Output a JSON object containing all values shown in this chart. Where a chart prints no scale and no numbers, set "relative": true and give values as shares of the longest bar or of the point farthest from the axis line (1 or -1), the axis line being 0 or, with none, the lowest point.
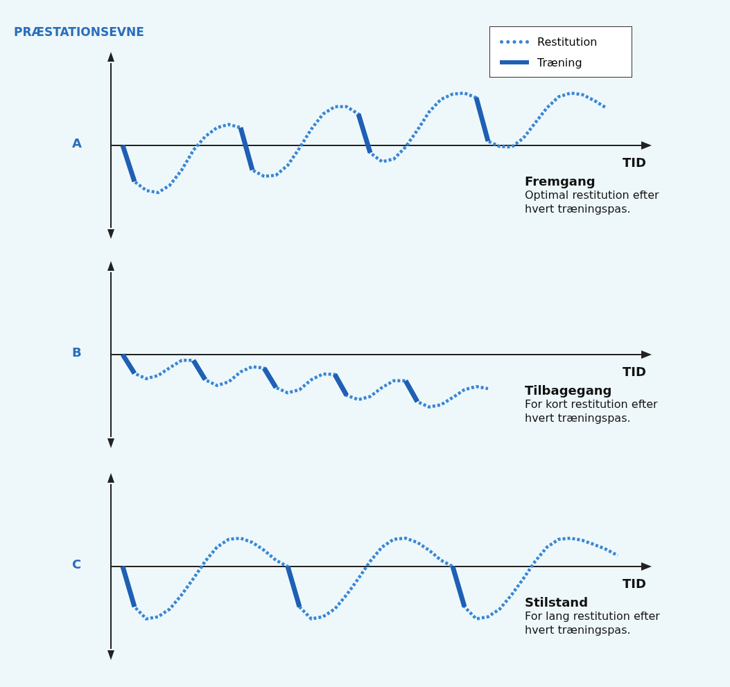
{
  "chart_data": [
    {
      "type": "line",
      "title": "A",
      "ylabel": "PRÆSTATIONSEVNE",
      "xlabel": "TID",
      "relative": true,
      "legend": "top right",
      "line_style": "dotted",
      "annotations": [
        "Fremgang",
        "Optimal restitution efter hvert træningspas."
      ],
      "categories": [
        null,
        null,
        null,
        null,
        null,
        null,
        null,
        null,
        null,
        null,
        null,
        null,
        null,
        null,
        null,
        null,
        null,
        null,
        null,
        null,
        null,
        null,
        null,
        null,
        null,
        null,
        null,
        null,
        null,
        null,
        null,
        null,
        null,
        null,
        null,
        null,
        null,
        null,
        null,
        null,
        null,
        null,
        null,
        null,
        null,
        null
      ],
      "series": [
        {
          "name": "Restitution",
          "color": "#3a86d4",
          "values": [
            null,
            0,
            -0.69,
            -0.86,
            -0.9,
            -0.76,
            -0.47,
            -0.09,
            0.17,
            0.34,
            0.4,
            0.34,
            -0.47,
            -0.59,
            -0.57,
            -0.38,
            -0.05,
            0.31,
            0.6,
            0.74,
            0.74,
            0.6,
            -0.14,
            -0.31,
            -0.26,
            -0.03,
            0.29,
            0.64,
            0.88,
            0.98,
            1,
            0.91,
            0.08,
            -0.02,
            -0.03,
            0.14,
            0.43,
            0.72,
            0.93,
            1,
            0.97,
            0.86,
            0.72,
            null,
            null,
            null
          ]
        },
        {
          "name": "Træning",
          "color": "#1f5fb4",
          "line_style": "solid",
          "values": [
            null,
            0,
            -0.69,
            null,
            null,
            null,
            null,
            null,
            null,
            null,
            null,
            0.34,
            -0.47,
            null,
            null,
            null,
            null,
            null,
            null,
            null,
            null,
            0.6,
            -0.14,
            null,
            null,
            null,
            null,
            null,
            null,
            null,
            null,
            0.91,
            0.08,
            null,
            null,
            null,
            null,
            null,
            null,
            null,
            null,
            null,
            null,
            null,
            null,
            null
          ]
        }
      ]
    },
    {
      "type": "line",
      "title": "B",
      "xlabel": "TID",
      "relative": true,
      "line_style": "dotted",
      "annotations": [
        "Tilbagegang",
        "For kort restitution efter hvert træningspas."
      ],
      "categories": [
        null,
        null,
        null,
        null,
        null,
        null,
        null,
        null,
        null,
        null,
        null,
        null,
        null,
        null,
        null,
        null,
        null,
        null,
        null,
        null,
        null,
        null,
        null,
        null,
        null,
        null,
        null,
        null,
        null,
        null,
        null,
        null,
        null,
        null,
        null,
        null,
        null,
        null,
        null,
        null,
        null,
        null,
        null,
        null,
        null,
        null
      ],
      "series": [
        {
          "color": "#3a86d4",
          "values": [
            null,
            0,
            -0.36,
            -0.46,
            -0.4,
            -0.25,
            -0.11,
            -0.11,
            -0.48,
            -0.59,
            -0.52,
            -0.33,
            -0.23,
            -0.26,
            -0.63,
            -0.73,
            -0.67,
            -0.48,
            -0.37,
            -0.38,
            -0.78,
            -0.86,
            -0.8,
            -0.63,
            -0.5,
            -0.5,
            -0.9,
            -1,
            -0.96,
            -0.82,
            -0.67,
            -0.61,
            -0.65,
            null,
            null,
            null,
            null,
            null,
            null,
            null,
            null,
            null,
            null,
            null,
            null,
            null
          ]
        },
        {
          "color": "#1f5fb4",
          "line_style": "solid",
          "values": [
            null,
            0,
            -0.36,
            null,
            null,
            null,
            null,
            -0.11,
            -0.48,
            null,
            null,
            null,
            null,
            -0.26,
            -0.63,
            null,
            null,
            null,
            null,
            -0.38,
            -0.78,
            null,
            null,
            null,
            null,
            -0.5,
            -0.9,
            null,
            null,
            null,
            null,
            null,
            null,
            null,
            null,
            null,
            null,
            null,
            null,
            null,
            null,
            null,
            null,
            null,
            null,
            null
          ]
        }
      ]
    },
    {
      "type": "line",
      "title": "C",
      "xlabel": "TID",
      "relative": true,
      "line_style": "dotted",
      "annotations": [
        "Stilstand",
        "For lang restitution efter hvert træningspas."
      ],
      "categories": [
        null,
        null,
        null,
        null,
        null,
        null,
        null,
        null,
        null,
        null,
        null,
        null,
        null,
        null,
        null,
        null,
        null,
        null,
        null,
        null,
        null,
        null,
        null,
        null,
        null,
        null,
        null,
        null,
        null,
        null,
        null,
        null,
        null,
        null,
        null,
        null,
        null,
        null,
        null,
        null,
        null,
        null,
        null,
        null,
        null,
        null
      ],
      "series": [
        {
          "color": "#3a86d4",
          "values": [
            null,
            0,
            -0.77,
            -1,
            -0.96,
            -0.81,
            -0.54,
            -0.23,
            0.1,
            0.37,
            0.52,
            0.54,
            0.46,
            0.31,
            0.12,
            0,
            -0.77,
            -1,
            -0.96,
            -0.81,
            -0.54,
            -0.23,
            0.1,
            0.37,
            0.52,
            0.54,
            0.46,
            0.31,
            0.12,
            0,
            -0.77,
            -1,
            -0.96,
            -0.81,
            -0.54,
            -0.23,
            0.1,
            0.37,
            0.52,
            0.54,
            0.5,
            0.42,
            0.33,
            0.21,
            null,
            null
          ]
        },
        {
          "color": "#1f5fb4",
          "line_style": "solid",
          "values": [
            null,
            0,
            -0.77,
            null,
            null,
            null,
            null,
            null,
            null,
            null,
            null,
            null,
            null,
            null,
            null,
            0,
            -0.77,
            null,
            null,
            null,
            null,
            null,
            null,
            null,
            null,
            null,
            null,
            null,
            null,
            0,
            -0.77,
            null,
            null,
            null,
            null,
            null,
            null,
            null,
            null,
            null,
            null,
            null,
            null,
            null,
            null,
            null
          ]
        }
      ]
    }
  ]
}
